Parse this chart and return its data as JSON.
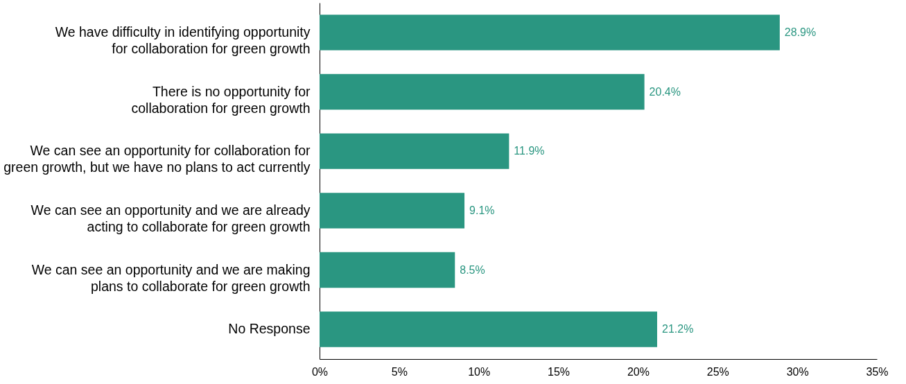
{
  "chart_data": {
    "type": "bar",
    "orientation": "horizontal",
    "categories": [
      "We have difficulty in identifying opportunity for collaboration for green growth",
      "There is no opportunity for collaboration for green growth",
      "We can see an opportunity for collaboration for green growth, but we have no plans to act currently",
      "We can see an opportunity and we are already acting to collaborate for green growth",
      "We can see an opportunity and we are making plans to collaborate for green growth",
      "No Response"
    ],
    "values": [
      28.9,
      20.4,
      11.9,
      9.1,
      8.5,
      21.2
    ],
    "value_labels": [
      "28.9%",
      "20.4%",
      "11.9%",
      "9.1%",
      "8.5%",
      "21.2%"
    ],
    "color": "#2a9681",
    "xlim": [
      0,
      35
    ],
    "xticks": [
      {
        "value": 0,
        "label": "0%"
      },
      {
        "value": 5,
        "label": "5%"
      },
      {
        "value": 10,
        "label": "10%"
      },
      {
        "value": 15,
        "label": "15%"
      },
      {
        "value": 20,
        "label": "20%"
      },
      {
        "value": 25,
        "label": "25%"
      },
      {
        "value": 30,
        "label": "30%"
      },
      {
        "value": 35,
        "label": "35%"
      }
    ],
    "grid": false
  }
}
